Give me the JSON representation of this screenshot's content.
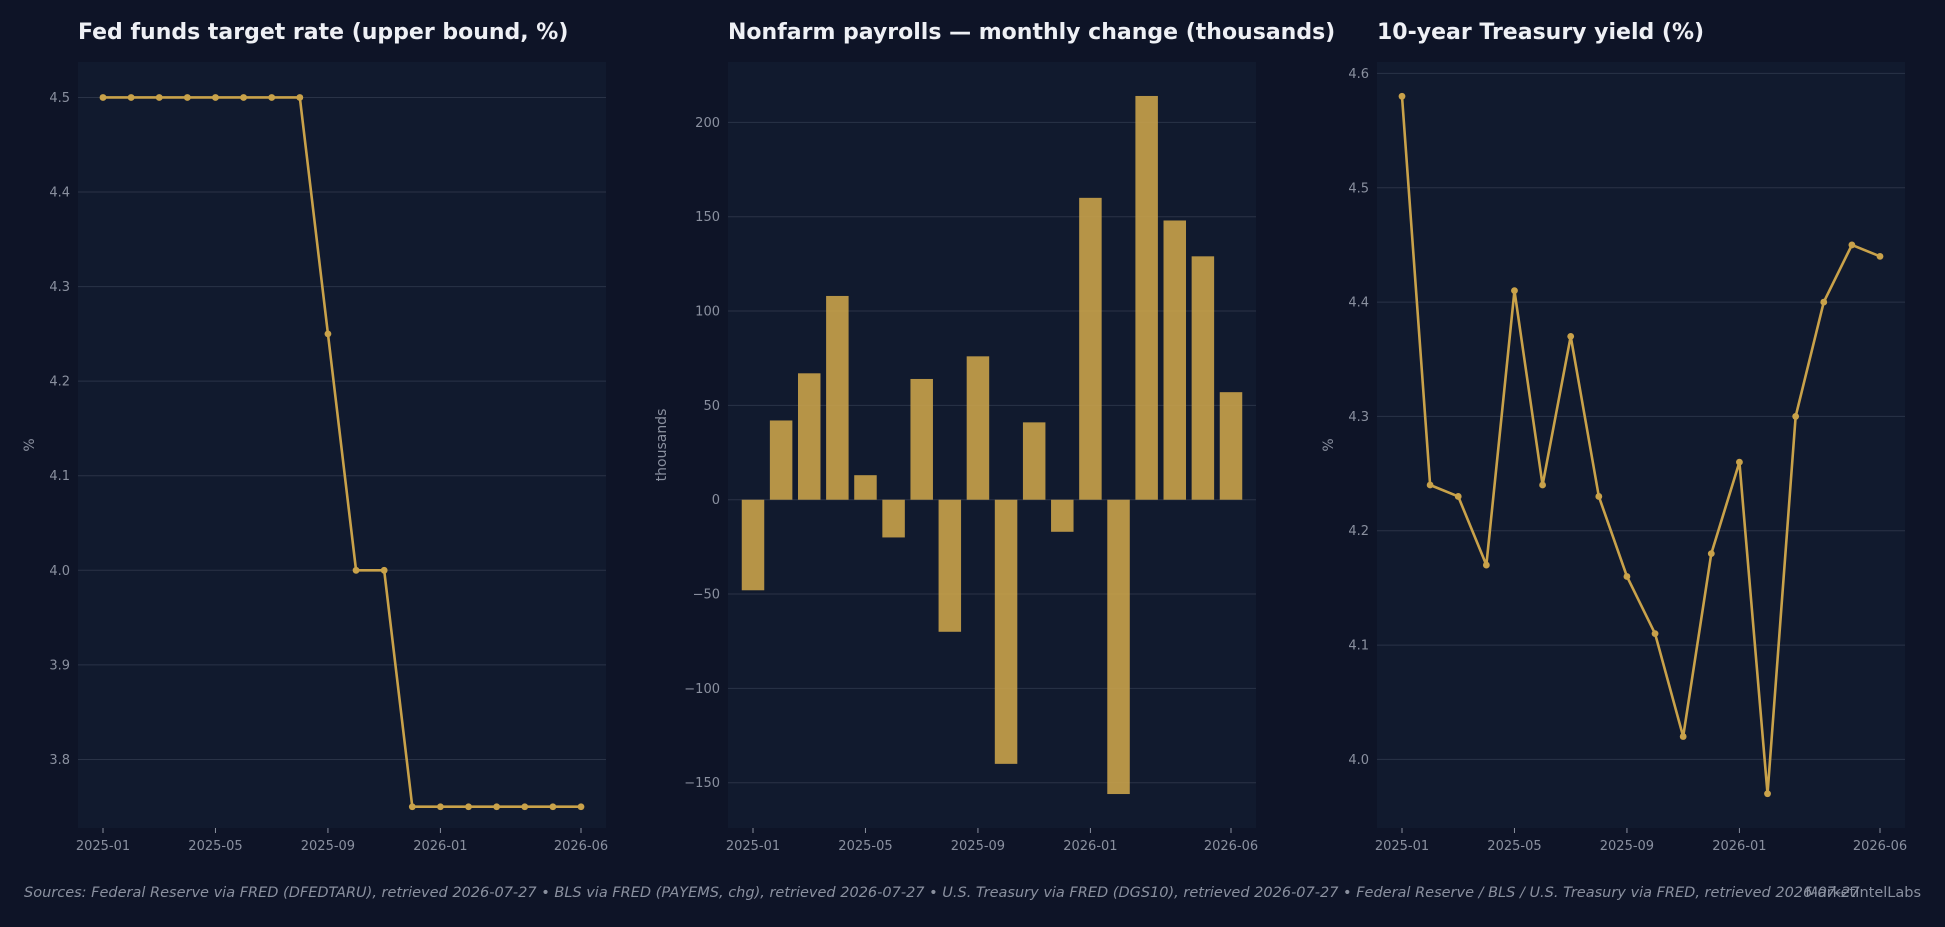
{
  "theme": {
    "background": "#0e1427",
    "plot_background": "#111a2e",
    "accent": "#c9a24a",
    "grid": "#2a3347",
    "tick_text": "#8a909f",
    "title_text": "#eef0f5"
  },
  "chart_data": [
    {
      "type": "line",
      "title": "Fed funds target rate (upper bound, %)",
      "xlabel": "",
      "ylabel": "%",
      "x": [
        "2025-01",
        "2025-02",
        "2025-03",
        "2025-04",
        "2025-05",
        "2025-06",
        "2025-07",
        "2025-08",
        "2025-09",
        "2025-10",
        "2025-11",
        "2025-12",
        "2026-01",
        "2026-02",
        "2026-03",
        "2026-04",
        "2026-05",
        "2026-06"
      ],
      "series": [
        {
          "values": [
            4.5,
            4.5,
            4.5,
            4.5,
            4.5,
            4.5,
            4.5,
            4.5,
            4.25,
            4.0,
            4.0,
            3.75,
            3.75,
            3.75,
            3.75,
            3.75,
            3.75,
            3.75
          ]
        }
      ],
      "ylim": [
        3.7275,
        4.5375
      ],
      "yticks": [
        "3.8",
        "3.9",
        "4.0",
        "4.1",
        "4.2",
        "4.3",
        "4.4",
        "4.5"
      ],
      "xticks": [
        "2025-01",
        "2025-05",
        "2025-09",
        "2026-01",
        "2026-06"
      ],
      "grid": "horizontal",
      "markers": true
    },
    {
      "type": "bar",
      "title": "Nonfarm payrolls — monthly change (thousands)",
      "xlabel": "",
      "ylabel": "thousands",
      "categories": [
        "2025-01",
        "2025-02",
        "2025-03",
        "2025-04",
        "2025-05",
        "2025-06",
        "2025-07",
        "2025-08",
        "2025-09",
        "2025-10",
        "2025-11",
        "2025-12",
        "2026-01",
        "2026-02",
        "2026-03",
        "2026-04",
        "2026-05",
        "2026-06"
      ],
      "values": [
        -48,
        42,
        67,
        108,
        13,
        -20,
        64,
        -70,
        76,
        -140,
        41,
        -17,
        160,
        -156,
        214,
        148,
        129,
        57
      ],
      "ylim": [
        -174,
        232
      ],
      "yticks": [
        "−150",
        "−100",
        "−50",
        "0",
        "50",
        "100",
        "150",
        "200"
      ],
      "xticks": [
        "2025-01",
        "2025-05",
        "2025-09",
        "2026-01",
        "2026-06"
      ],
      "grid": "horizontal"
    },
    {
      "type": "line",
      "title": "10-year Treasury yield (%)",
      "xlabel": "",
      "ylabel": "%",
      "x": [
        "2025-01",
        "2025-02",
        "2025-03",
        "2025-04",
        "2025-05",
        "2025-06",
        "2025-07",
        "2025-08",
        "2025-09",
        "2025-10",
        "2025-11",
        "2025-12",
        "2026-01",
        "2026-02",
        "2026-03",
        "2026-04",
        "2026-05",
        "2026-06"
      ],
      "series": [
        {
          "values": [
            4.58,
            4.24,
            4.23,
            4.17,
            4.41,
            4.24,
            4.37,
            4.23,
            4.16,
            4.11,
            4.02,
            4.18,
            4.26,
            3.97,
            4.3,
            4.4,
            4.45,
            4.44
          ]
        }
      ],
      "ylim": [
        3.94,
        4.61
      ],
      "yticks": [
        "4.0",
        "4.1",
        "4.2",
        "4.3",
        "4.4",
        "4.5",
        "4.6"
      ],
      "xticks": [
        "2025-01",
        "2025-05",
        "2025-09",
        "2026-01",
        "2026-06"
      ],
      "grid": "horizontal",
      "markers": true
    }
  ],
  "footer": {
    "sources": "Sources: Federal Reserve via FRED (DFEDTARU), retrieved 2026-07-27  •  BLS via FRED (PAYEMS, chg), retrieved 2026-07-27  •  U.S. Treasury via FRED (DGS10), retrieved 2026-07-27  •  Federal Reserve / BLS / U.S. Treasury via FRED, retrieved 2026-07-27",
    "brand": "MarketIntelLabs"
  }
}
